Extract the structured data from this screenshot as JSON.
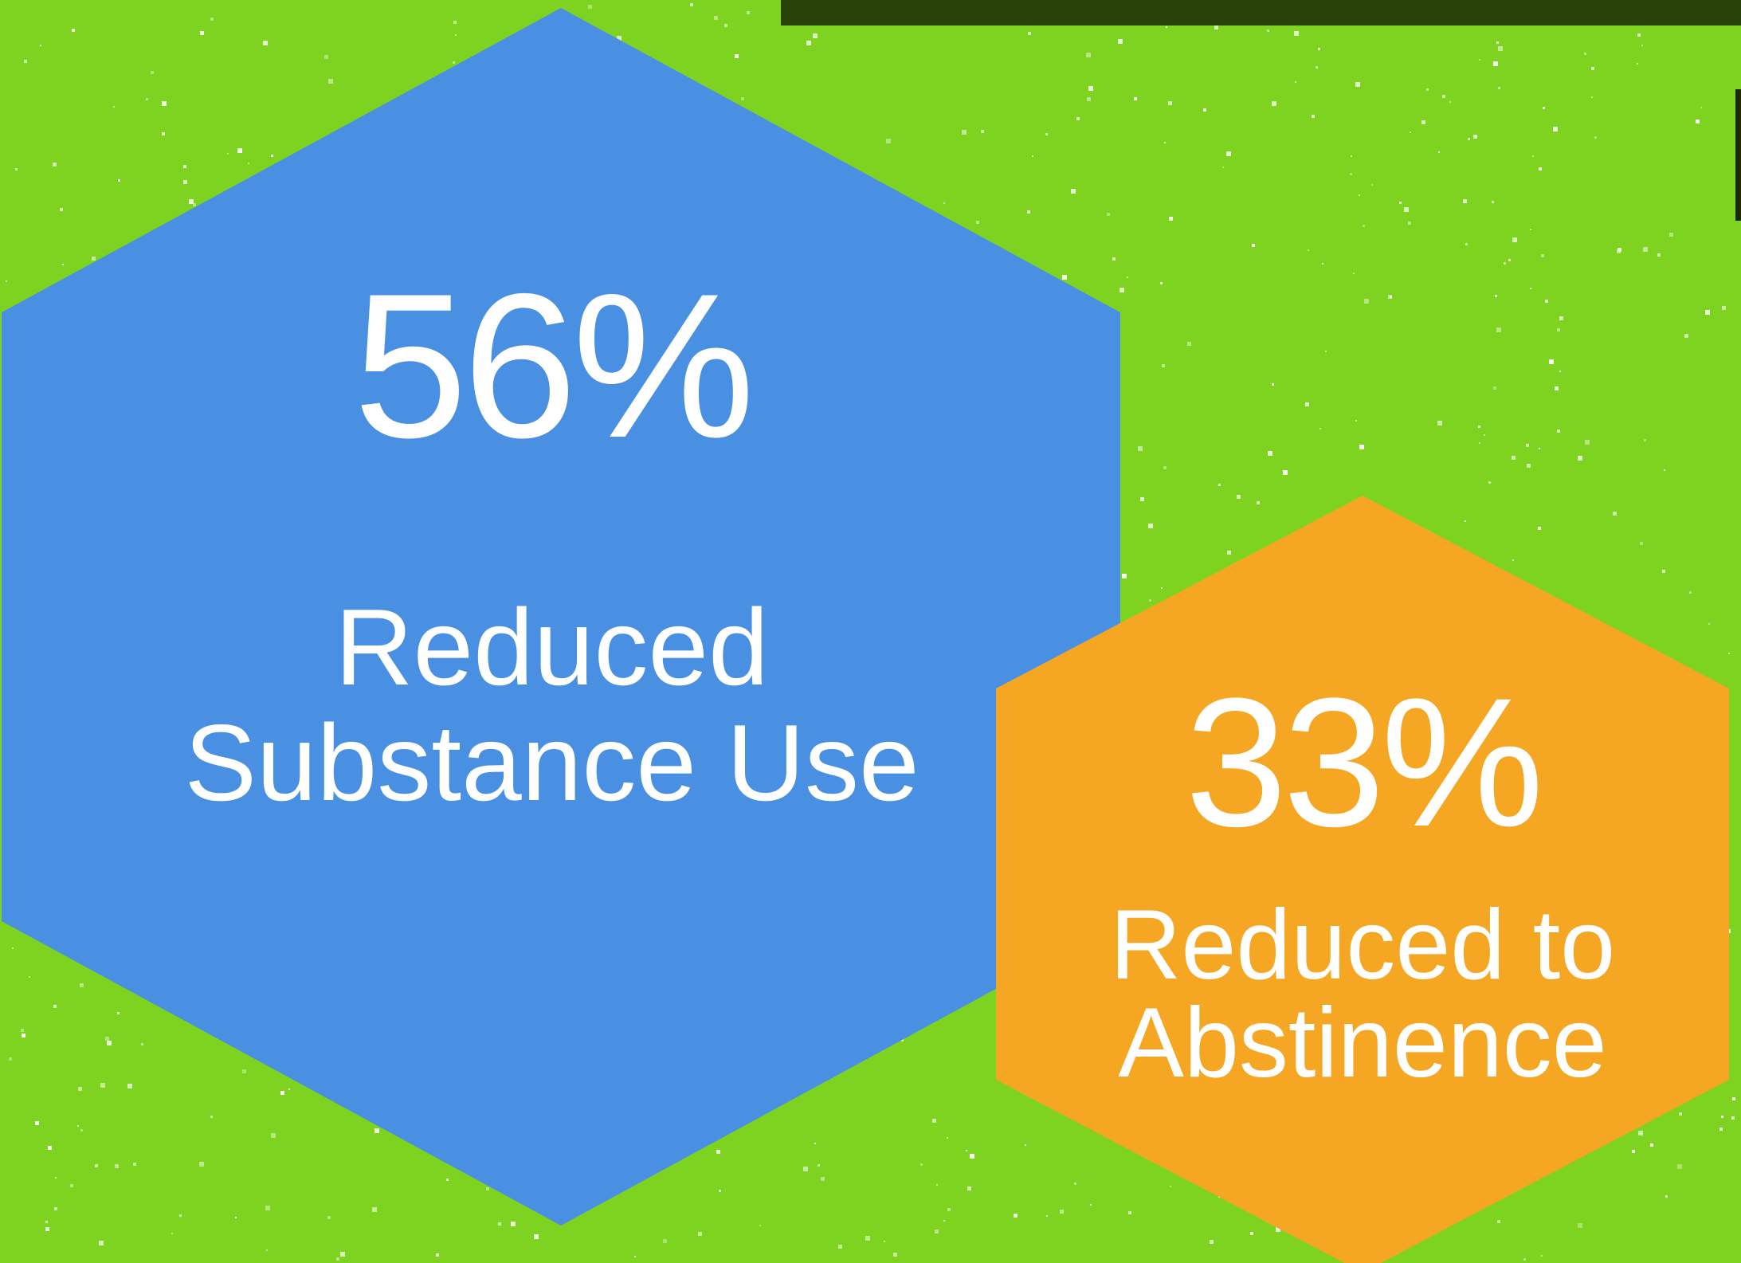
{
  "background": {
    "color": "#7ed321",
    "speckle_color": "#ffffff",
    "top_bar_color": "#284207"
  },
  "stats": [
    {
      "value": "56%",
      "label_line1": "Reduced",
      "label_line2": "Substance Use",
      "color": "#4a90e2"
    },
    {
      "value": "33%",
      "label_line1": "Reduced to",
      "label_line2": "Abstinence",
      "color": "#f5a623"
    }
  ]
}
